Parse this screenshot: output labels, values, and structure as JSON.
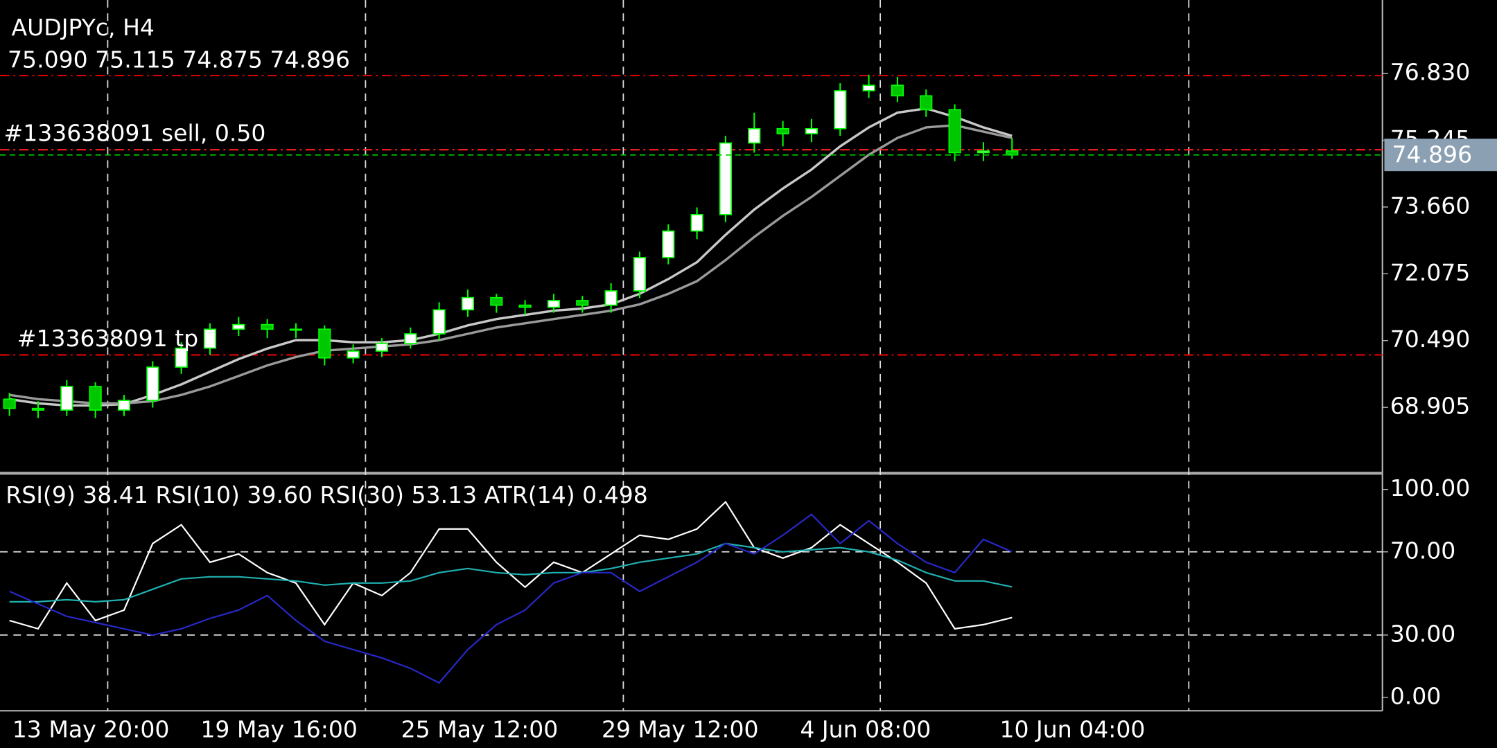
{
  "chart_data": [
    {
      "type": "candlestick",
      "title": "AUDJPYc, H4",
      "subtitle": "75.090 75.115 74.875 74.896",
      "x": [
        0,
        1,
        2,
        3,
        4,
        5,
        6,
        7,
        8,
        9,
        10,
        11,
        12,
        13,
        14,
        15,
        16,
        17,
        18,
        19,
        20,
        21,
        22,
        23,
        24,
        25,
        26,
        27,
        28,
        29,
        30,
        31,
        32,
        33,
        34,
        35
      ],
      "open": [
        69.1,
        68.88,
        68.84,
        69.4,
        68.84,
        69.07,
        69.86,
        70.31,
        70.76,
        70.87,
        70.76,
        70.76,
        70.08,
        70.24,
        70.42,
        70.65,
        71.22,
        71.51,
        71.33,
        71.28,
        71.44,
        71.33,
        71.67,
        72.46,
        73.09,
        73.48,
        75.18,
        75.52,
        75.4,
        75.52,
        76.42,
        76.55,
        76.3,
        75.97,
        74.95,
        74.99
      ],
      "high": [
        69.25,
        69.05,
        69.55,
        69.5,
        69.2,
        70.0,
        70.45,
        70.9,
        71.05,
        71.0,
        70.9,
        70.85,
        70.4,
        70.55,
        70.8,
        71.4,
        71.7,
        71.6,
        71.45,
        71.6,
        71.55,
        71.85,
        72.6,
        73.25,
        73.65,
        75.35,
        75.9,
        75.7,
        75.75,
        76.6,
        76.8,
        76.75,
        76.45,
        76.1,
        75.2,
        75.3
      ],
      "low": [
        68.7,
        68.65,
        68.7,
        68.65,
        68.7,
        68.9,
        69.7,
        70.15,
        70.6,
        70.55,
        70.55,
        69.9,
        69.95,
        70.1,
        70.3,
        70.5,
        71.05,
        71.15,
        71.1,
        71.15,
        71.15,
        71.15,
        71.5,
        72.3,
        72.9,
        73.3,
        74.95,
        75.1,
        75.2,
        75.35,
        76.25,
        76.15,
        75.8,
        74.75,
        74.75,
        74.8
      ],
      "close": [
        68.88,
        68.84,
        69.4,
        68.84,
        69.07,
        69.86,
        70.31,
        70.76,
        70.87,
        70.76,
        70.76,
        70.08,
        70.24,
        70.42,
        70.65,
        71.22,
        71.51,
        71.33,
        71.28,
        71.44,
        71.33,
        71.67,
        72.46,
        73.09,
        73.48,
        75.18,
        75.52,
        75.4,
        75.52,
        76.42,
        76.55,
        76.3,
        75.97,
        74.95,
        74.99,
        74.896
      ],
      "up_color": "#ffffff",
      "down_color": "#00c800",
      "wick_color": "#00ff00",
      "series": [
        {
          "color": "#c8c8c8",
          "values": [
            69.1,
            69.0,
            68.95,
            68.95,
            68.98,
            69.2,
            69.45,
            69.75,
            70.05,
            70.3,
            70.5,
            70.5,
            70.45,
            70.45,
            70.5,
            70.65,
            70.85,
            71.0,
            71.1,
            71.2,
            71.25,
            71.35,
            71.6,
            71.95,
            72.35,
            73.0,
            73.6,
            74.1,
            74.55,
            75.1,
            75.55,
            75.9,
            76.0,
            75.8,
            75.55,
            75.35
          ]
        },
        {
          "color": "#9a9a9a",
          "values": [
            69.2,
            69.1,
            69.05,
            69.0,
            69.0,
            69.05,
            69.2,
            69.4,
            69.65,
            69.9,
            70.1,
            70.25,
            70.3,
            70.35,
            70.4,
            70.5,
            70.65,
            70.8,
            70.9,
            71.0,
            71.1,
            71.2,
            71.35,
            71.6,
            71.9,
            72.4,
            72.95,
            73.45,
            73.9,
            74.4,
            74.9,
            75.3,
            75.55,
            75.6,
            75.45,
            75.3
          ]
        }
      ],
      "levels": [
        {
          "value": 76.78,
          "color": "#e00000"
        },
        {
          "value": 75.02,
          "color": "#ff2020",
          "label": "#133638091 sell, 0.50"
        },
        {
          "value": 70.15,
          "color": "#e00000",
          "label": "#133638091 tp"
        }
      ],
      "last_price": 74.896,
      "last_price_color": "#8ca0b4",
      "xlim": [
        -0.33,
        47.93
      ],
      "ylim": [
        67.364,
        78.574
      ],
      "yticks": [
        68.905,
        {
          "value": 70.49,
          "label": "70.490"
        },
        72.075,
        {
          "value": 73.66,
          "label": "73.660"
        },
        75.245,
        {
          "value": 76.83,
          "label": "76.830"
        }
      ]
    },
    {
      "type": "line",
      "title": "RSI(9) 38.41 RSI(10) 39.60 RSI(30) 53.13 ATR(14) 0.498",
      "x": [
        0,
        1,
        2,
        3,
        4,
        5,
        6,
        7,
        8,
        9,
        10,
        11,
        12,
        13,
        14,
        15,
        16,
        17,
        18,
        19,
        20,
        21,
        22,
        23,
        24,
        25,
        26,
        27,
        28,
        29,
        30,
        31,
        32,
        33,
        34,
        35
      ],
      "series": [
        {
          "color": "#ffffff",
          "values": [
            37,
            33,
            55,
            37,
            42,
            74,
            83,
            65,
            69,
            60,
            55,
            35,
            55,
            49,
            60,
            81,
            81,
            65,
            53,
            65,
            60,
            69,
            78,
            76,
            81,
            94,
            72,
            67,
            72,
            83,
            74,
            65,
            55,
            33,
            35,
            38.41
          ]
        },
        {
          "color": "#20b0b0",
          "values": [
            46,
            46,
            47,
            46,
            47,
            52,
            57,
            58,
            58,
            57,
            56,
            54,
            55,
            55,
            56,
            60,
            62,
            60,
            59,
            60,
            60,
            62,
            65,
            67,
            69,
            74,
            72,
            70,
            71,
            72,
            70,
            66,
            60,
            56,
            56,
            53.13
          ]
        },
        {
          "color": "#2828c8",
          "values": [
            51,
            45,
            39,
            36,
            33,
            30,
            33,
            38,
            42,
            49,
            37,
            27,
            23,
            19,
            14,
            7,
            23,
            35,
            42,
            55,
            60,
            60,
            51,
            58,
            65,
            74,
            69,
            78,
            88,
            74,
            85,
            74,
            65,
            60,
            76,
            70
          ]
        }
      ],
      "xlim": [
        -0.33,
        47.93
      ],
      "ylim": [
        -6.42,
        107.34
      ],
      "yticks": [
        {
          "value": 0,
          "label": "0.00"
        },
        {
          "value": 30,
          "label": "30.00"
        },
        {
          "value": 70,
          "label": "70.00"
        },
        {
          "value": 100,
          "label": "100.00"
        }
      ],
      "grid_levels": [
        30,
        70
      ],
      "xgrid": [
        3.43,
        12.43,
        21.43,
        30.4,
        41.17
      ],
      "xticks": [
        {
          "value": 0.1,
          "label": "13 May 20:00"
        },
        {
          "value": 6.67,
          "label": "19 May 16:00"
        },
        {
          "value": 13.67,
          "label": "25 May 12:00"
        },
        {
          "value": 20.67,
          "label": "29 May 12:00"
        },
        {
          "value": 27.6,
          "label": "4 Jun 08:00"
        },
        {
          "value": 34.57,
          "label": "10 Jun 04:00"
        }
      ]
    }
  ]
}
